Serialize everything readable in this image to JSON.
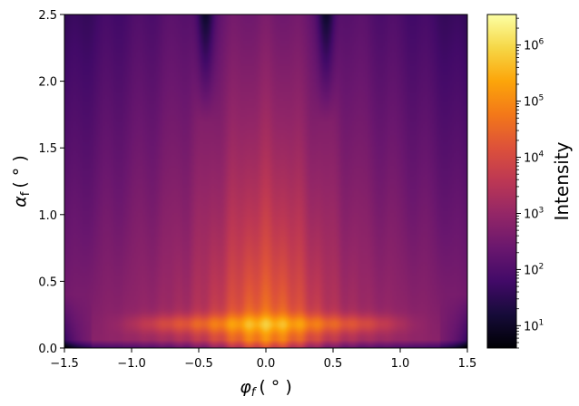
{
  "chart_data": {
    "type": "heatmap",
    "title": "",
    "xlabel_base": "φ",
    "xlabel_sub": "f",
    "xlabel_unit": "( ° )",
    "ylabel_base": "α",
    "ylabel_sub": "f",
    "ylabel_unit": "( ° )",
    "xlim": [
      -1.5,
      1.5
    ],
    "ylim": [
      0.0,
      2.5
    ],
    "x_ticks": [
      -1.5,
      -1.0,
      -0.5,
      0.0,
      0.5,
      1.0,
      1.5
    ],
    "x_tick_labels": [
      "−1.5",
      "−1.0",
      "−0.5",
      "0.0",
      "0.5",
      "1.0",
      "1.5"
    ],
    "y_ticks": [
      0.0,
      0.5,
      1.0,
      1.5,
      2.0,
      2.5
    ],
    "y_tick_labels": [
      "0.0",
      "0.5",
      "1.0",
      "1.5",
      "2.0",
      "2.5"
    ],
    "colormap": "inferno",
    "colorbar": {
      "label": "Intensity",
      "scale": "log",
      "range": [
        4,
        3500000
      ],
      "ticks": [
        10,
        100,
        1000,
        10000,
        100000,
        1000000
      ],
      "tick_labels": [
        {
          "base": "10",
          "exp": "1"
        },
        {
          "base": "10",
          "exp": "2"
        },
        {
          "base": "10",
          "exp": "3"
        },
        {
          "base": "10",
          "exp": "4"
        },
        {
          "base": "10",
          "exp": "5"
        },
        {
          "base": "10",
          "exp": "6"
        }
      ]
    },
    "features": {
      "yoneda_peak_alpha": 0.18,
      "central_rod_halfwidth_deg": 0.5,
      "dark_stripe_phi": [
        -0.45,
        0.45
      ],
      "grid": false
    }
  }
}
